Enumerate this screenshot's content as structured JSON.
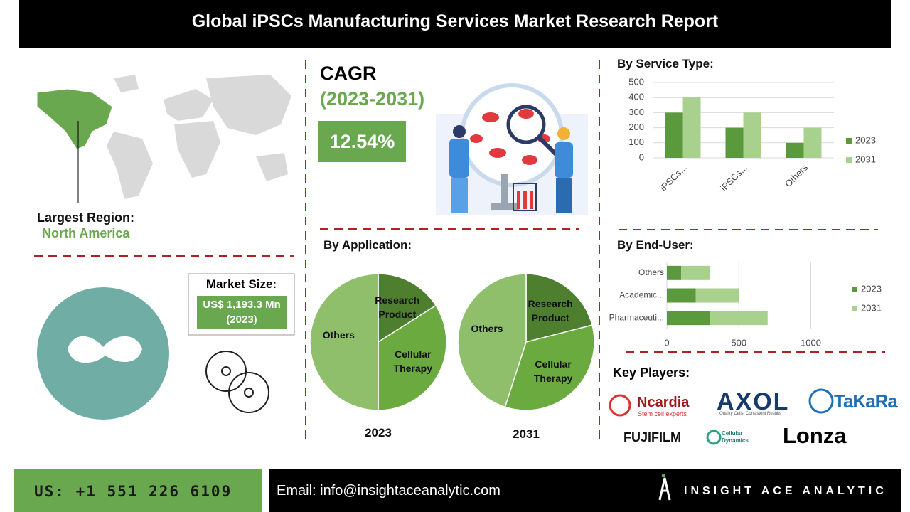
{
  "header": {
    "title": "Global iPSCs Manufacturing Services Market Research Report"
  },
  "region": {
    "label": "Largest Region:",
    "value": "North America"
  },
  "cagr": {
    "title": "CAGR",
    "period": "(2023-2031)",
    "value": "12.54%"
  },
  "market_size": {
    "label": "Market Size:",
    "value": "US$ 1,193.3 Mn (2023)"
  },
  "key_players": {
    "title": "Key Players:",
    "logos": [
      {
        "name": "Ncardia",
        "tagline": "Stem cell experts"
      },
      {
        "name": "AXOL",
        "tagline": "Quality Cells, Consistent Results"
      },
      {
        "name": "TaKaRa"
      },
      {
        "name": "FUJIFILM"
      },
      {
        "name": "Cellular Dynamics"
      },
      {
        "name": "Lonza"
      }
    ]
  },
  "footer": {
    "phone": "US: +1 551 226 6109",
    "email": "Email: info@insightaceanalytic.com",
    "brand": "INSIGHT ACE ANALYTIC"
  },
  "chart_data": [
    {
      "type": "bar",
      "title": "By Service Type:",
      "categories": [
        "iPSCs...",
        "iPSCs...",
        "Others"
      ],
      "series": [
        {
          "name": "2023",
          "color": "#5b9a3c",
          "values": [
            300,
            200,
            100
          ]
        },
        {
          "name": "2031",
          "color": "#a9d18e",
          "values": [
            400,
            300,
            200
          ]
        }
      ],
      "ylim": [
        0,
        500
      ],
      "yticks": [
        0,
        100,
        200,
        300,
        400,
        500
      ],
      "grid": true,
      "legend": "right"
    },
    {
      "type": "pie",
      "title": "By Application:",
      "label": "2023",
      "categories": [
        "Research Product",
        "Cellular Therapy",
        "Others"
      ],
      "values": [
        16,
        34,
        50
      ],
      "colors": [
        "#4e7f2f",
        "#6aaa3f",
        "#8fbf6a"
      ]
    },
    {
      "type": "pie",
      "label": "2031",
      "categories": [
        "Research Product",
        "Cellular Therapy",
        "Others"
      ],
      "values": [
        21,
        34,
        45
      ],
      "colors": [
        "#4e7f2f",
        "#6aaa3f",
        "#8fbf6a"
      ]
    },
    {
      "type": "bar",
      "orientation": "horizontal",
      "stacked": true,
      "title": "By End-User:",
      "categories": [
        "Others",
        "Academic...",
        "Pharmaceuti..."
      ],
      "series": [
        {
          "name": "2023",
          "color": "#5b9a3c",
          "values": [
            100,
            200,
            300
          ]
        },
        {
          "name": "2031",
          "color": "#a9d18e",
          "values": [
            200,
            300,
            400
          ]
        }
      ],
      "xlim": [
        0,
        1200
      ],
      "xticks": [
        0,
        500,
        1000
      ],
      "grid": true,
      "legend": "right"
    }
  ]
}
